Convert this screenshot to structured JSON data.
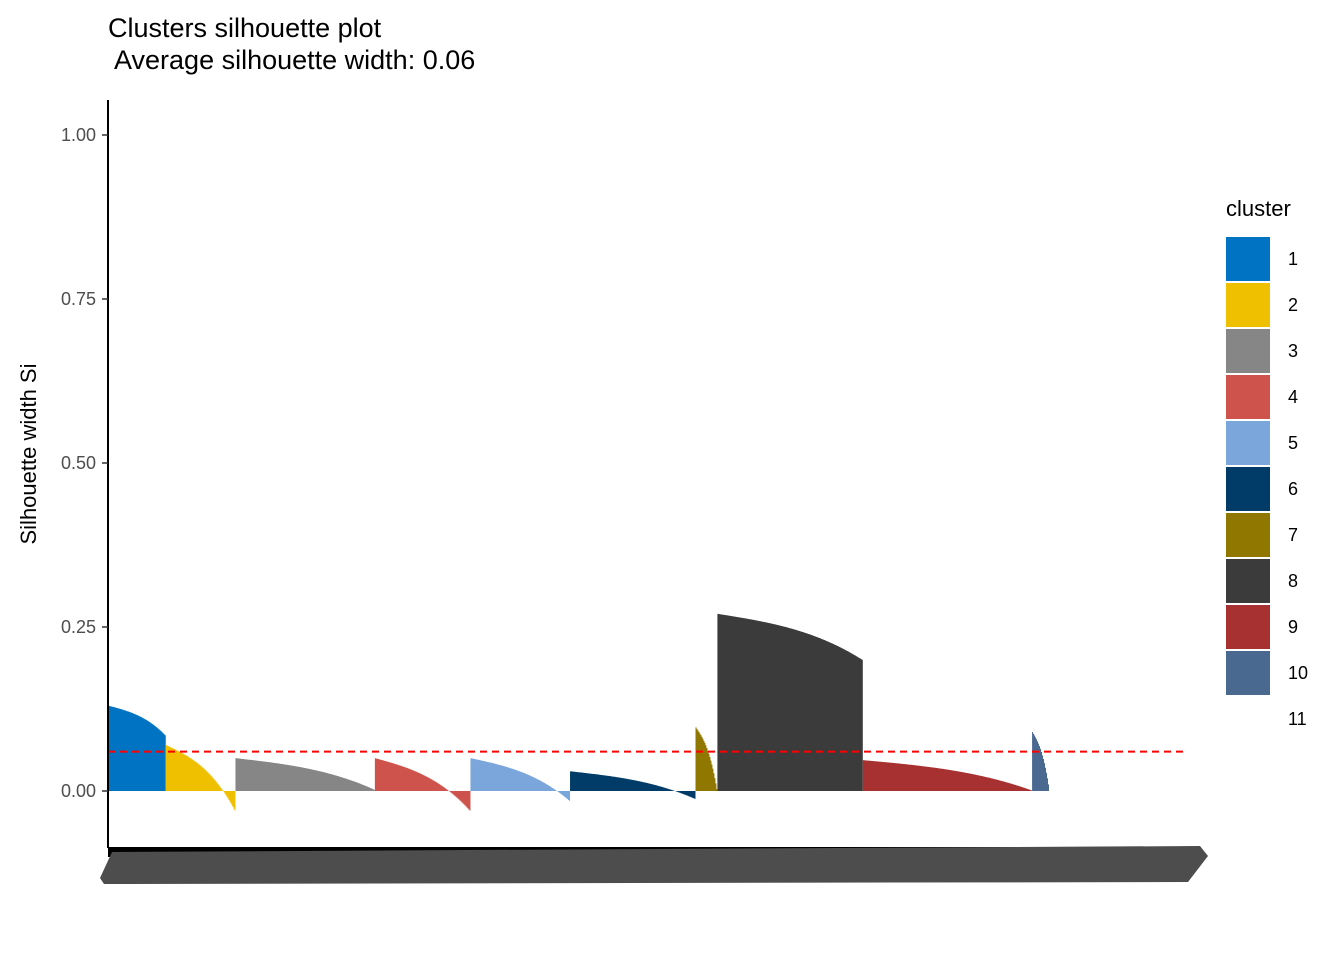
{
  "chart_data": {
    "type": "bar",
    "title": "Clusters silhouette plot",
    "subtitle": " Average silhouette width: 0.06",
    "xlabel": "",
    "ylabel": "Silhouette width Si",
    "ylim": [
      -0.08,
      1.05
    ],
    "yticks": [
      0.0,
      0.25,
      0.5,
      0.75,
      1.0
    ],
    "ytick_labels": [
      "0.00",
      "0.25",
      "0.50",
      "0.75",
      "1.00"
    ],
    "average_line": 0.06,
    "average_line_color": "#ff0000",
    "grid": false,
    "legend_position": "right",
    "legend_title": "cluster",
    "clusters": [
      {
        "name": "1",
        "color": "#0073c2",
        "n": 58,
        "max": 0.13,
        "min": 0.085
      },
      {
        "name": "2",
        "color": "#efc000",
        "n": 70,
        "max": 0.07,
        "min": -0.03
      },
      {
        "name": "3",
        "color": "#868686",
        "n": 140,
        "max": 0.05,
        "min": 0.002
      },
      {
        "name": "4",
        "color": "#cd534c",
        "n": 96,
        "max": 0.05,
        "min": -0.03
      },
      {
        "name": "5",
        "color": "#7aa6dc",
        "n": 100,
        "max": 0.05,
        "min": -0.015
      },
      {
        "name": "6",
        "color": "#003c67",
        "n": 126,
        "max": 0.03,
        "min": -0.012
      },
      {
        "name": "7",
        "color": "#8f7700",
        "n": 22,
        "max": 0.097,
        "min": 0.003
      },
      {
        "name": "8",
        "color": "#3b3b3b",
        "n": 146,
        "max": 0.27,
        "min": 0.2
      },
      {
        "name": "9",
        "color": "#a73030",
        "n": 170,
        "max": 0.047,
        "min": 0.001
      },
      {
        "name": "10",
        "color": "#4a6990",
        "n": 18,
        "max": 0.09,
        "min": 0.0
      },
      {
        "name": "11",
        "color": "#ffffff",
        "n": 0,
        "max": 0,
        "min": 0
      }
    ]
  }
}
